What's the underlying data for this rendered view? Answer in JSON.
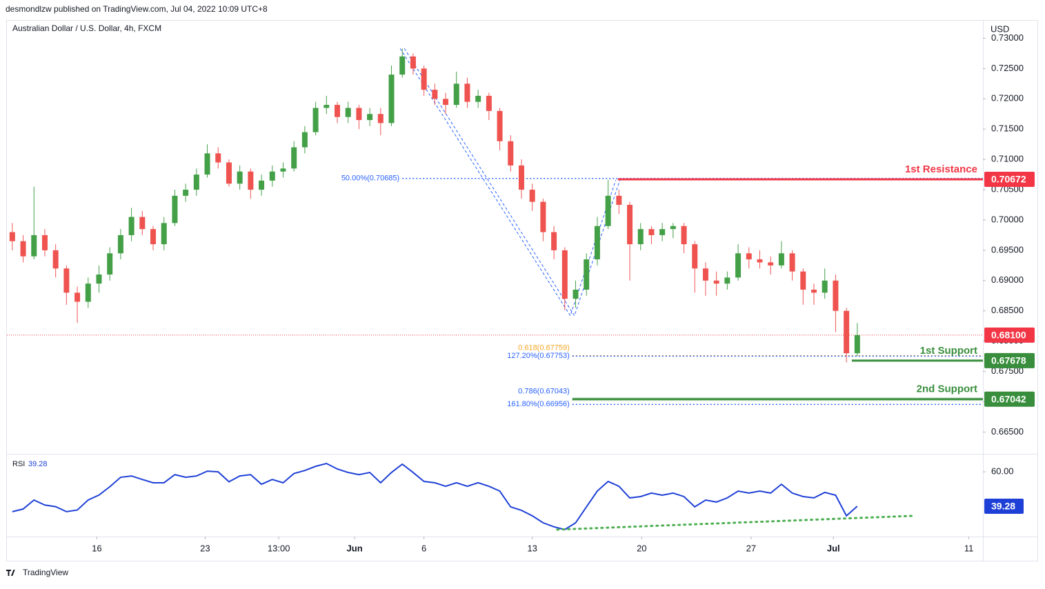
{
  "header": {
    "published": "desmondlzw published on TradingView.com, Jul 04, 2022 10:09 UTC+8",
    "brand": "TradingView"
  },
  "chart_data": [
    {
      "type": "candlestick",
      "title": "Australian Dollar / U.S. Dollar, 4h, FXCM",
      "y_label": "USD",
      "up_color": "#43a047",
      "down_color": "#ef5350",
      "xlim": [
        -0.5,
        89.6
      ],
      "xticks": [
        {
          "value": 7.8,
          "label": "16"
        },
        {
          "value": 17.8,
          "label": "23"
        },
        {
          "value": 24.6,
          "label": "13:00"
        },
        {
          "value": 31.6,
          "label": "Jun",
          "bold": true
        },
        {
          "value": 38,
          "label": "6"
        },
        {
          "value": 48,
          "label": "13"
        },
        {
          "value": 58.1,
          "label": "20"
        },
        {
          "value": 68.2,
          "label": "27"
        },
        {
          "value": 75.8,
          "label": "Jul",
          "bold": true
        },
        {
          "value": 88.3,
          "label": "11"
        }
      ],
      "ylim": [
        0.6614,
        0.7329
      ],
      "yticks": [
        {
          "value": 0.665,
          "label": "0.66500"
        },
        {
          "value": 0.67,
          "label": "0.67000"
        },
        {
          "value": 0.675,
          "label": "0.67500"
        },
        {
          "value": 0.68,
          "label": "0.68000"
        },
        {
          "value": 0.685,
          "label": "0.68500"
        },
        {
          "value": 0.69,
          "label": "0.69000"
        },
        {
          "value": 0.695,
          "label": "0.69500"
        },
        {
          "value": 0.7,
          "label": "0.70000"
        },
        {
          "value": 0.705,
          "label": "0.70500"
        },
        {
          "value": 0.71,
          "label": "0.71000"
        },
        {
          "value": 0.715,
          "label": "0.71500"
        },
        {
          "value": 0.72,
          "label": "0.72000"
        },
        {
          "value": 0.725,
          "label": "0.72500"
        },
        {
          "value": 0.73,
          "label": "0.73000"
        }
      ],
      "ohlc": [
        [
          0.698,
          0.6995,
          0.695,
          0.6965
        ],
        [
          0.6965,
          0.6975,
          0.693,
          0.694
        ],
        [
          0.694,
          0.7055,
          0.6935,
          0.6975
        ],
        [
          0.6975,
          0.6985,
          0.694,
          0.695
        ],
        [
          0.695,
          0.696,
          0.6905,
          0.692
        ],
        [
          0.692,
          0.6925,
          0.686,
          0.688
        ],
        [
          0.688,
          0.689,
          0.683,
          0.6865
        ],
        [
          0.6865,
          0.6905,
          0.6855,
          0.6895
        ],
        [
          0.6895,
          0.6925,
          0.688,
          0.691
        ],
        [
          0.691,
          0.6955,
          0.69,
          0.6945
        ],
        [
          0.6945,
          0.6985,
          0.6935,
          0.6975
        ],
        [
          0.6975,
          0.702,
          0.6965,
          0.7005
        ],
        [
          0.7005,
          0.7015,
          0.6975,
          0.6985
        ],
        [
          0.6985,
          0.699,
          0.695,
          0.696
        ],
        [
          0.696,
          0.7005,
          0.695,
          0.6995
        ],
        [
          0.6995,
          0.705,
          0.699,
          0.704
        ],
        [
          0.704,
          0.706,
          0.703,
          0.705
        ],
        [
          0.705,
          0.7085,
          0.704,
          0.7075
        ],
        [
          0.7075,
          0.7125,
          0.707,
          0.711
        ],
        [
          0.711,
          0.712,
          0.7085,
          0.7095
        ],
        [
          0.7095,
          0.71,
          0.7055,
          0.706
        ],
        [
          0.706,
          0.709,
          0.705,
          0.708
        ],
        [
          0.708,
          0.7085,
          0.7035,
          0.705
        ],
        [
          0.705,
          0.7075,
          0.704,
          0.7065
        ],
        [
          0.7065,
          0.709,
          0.7055,
          0.708
        ],
        [
          0.708,
          0.7095,
          0.707,
          0.7085
        ],
        [
          0.7085,
          0.713,
          0.708,
          0.712
        ],
        [
          0.712,
          0.7155,
          0.711,
          0.7145
        ],
        [
          0.7145,
          0.7195,
          0.714,
          0.7185
        ],
        [
          0.7185,
          0.7205,
          0.7175,
          0.719
        ],
        [
          0.719,
          0.7195,
          0.716,
          0.717
        ],
        [
          0.717,
          0.7195,
          0.716,
          0.7185
        ],
        [
          0.7185,
          0.719,
          0.715,
          0.7165
        ],
        [
          0.7165,
          0.7185,
          0.7155,
          0.7175
        ],
        [
          0.7175,
          0.7185,
          0.714,
          0.716
        ],
        [
          0.716,
          0.7255,
          0.7155,
          0.724
        ],
        [
          0.724,
          0.7283,
          0.7235,
          0.727
        ],
        [
          0.727,
          0.7275,
          0.724,
          0.725
        ],
        [
          0.725,
          0.7255,
          0.7205,
          0.7215
        ],
        [
          0.7215,
          0.7225,
          0.719,
          0.72
        ],
        [
          0.72,
          0.721,
          0.7175,
          0.719
        ],
        [
          0.719,
          0.7245,
          0.7185,
          0.7225
        ],
        [
          0.7225,
          0.7235,
          0.7185,
          0.7195
        ],
        [
          0.7195,
          0.7215,
          0.7185,
          0.7205
        ],
        [
          0.7205,
          0.721,
          0.7165,
          0.718
        ],
        [
          0.718,
          0.7185,
          0.7115,
          0.713
        ],
        [
          0.713,
          0.714,
          0.708,
          0.709
        ],
        [
          0.709,
          0.71,
          0.7035,
          0.705
        ],
        [
          0.705,
          0.706,
          0.7015,
          0.703
        ],
        [
          0.703,
          0.7035,
          0.6965,
          0.698
        ],
        [
          0.698,
          0.699,
          0.6935,
          0.695
        ],
        [
          0.695,
          0.6955,
          0.6851,
          0.687
        ],
        [
          0.687,
          0.69,
          0.6855,
          0.6885
        ],
        [
          0.6885,
          0.6945,
          0.6875,
          0.6935
        ],
        [
          0.6935,
          0.7005,
          0.6925,
          0.699
        ],
        [
          0.699,
          0.7066,
          0.6985,
          0.704
        ],
        [
          0.704,
          0.705,
          0.701,
          0.7025
        ],
        [
          0.7025,
          0.703,
          0.69,
          0.696
        ],
        [
          0.696,
          0.6995,
          0.695,
          0.6985
        ],
        [
          0.6985,
          0.699,
          0.696,
          0.6975
        ],
        [
          0.6975,
          0.6995,
          0.6965,
          0.6985
        ],
        [
          0.6985,
          0.6995,
          0.697,
          0.699
        ],
        [
          0.699,
          0.6995,
          0.6945,
          0.696
        ],
        [
          0.696,
          0.6965,
          0.688,
          0.692
        ],
        [
          0.692,
          0.693,
          0.6875,
          0.69
        ],
        [
          0.69,
          0.6915,
          0.6875,
          0.6895
        ],
        [
          0.6895,
          0.6915,
          0.6885,
          0.6905
        ],
        [
          0.6905,
          0.696,
          0.69,
          0.6945
        ],
        [
          0.6945,
          0.6955,
          0.692,
          0.6935
        ],
        [
          0.6935,
          0.695,
          0.692,
          0.693
        ],
        [
          0.693,
          0.694,
          0.691,
          0.6925
        ],
        [
          0.6925,
          0.6965,
          0.692,
          0.6945
        ],
        [
          0.6945,
          0.695,
          0.69,
          0.6915
        ],
        [
          0.6915,
          0.692,
          0.686,
          0.6885
        ],
        [
          0.6885,
          0.6895,
          0.686,
          0.688
        ],
        [
          0.688,
          0.692,
          0.687,
          0.69
        ],
        [
          0.69,
          0.691,
          0.6815,
          0.685
        ],
        [
          0.685,
          0.6855,
          0.6765,
          0.678
        ],
        [
          0.678,
          0.683,
          0.6775,
          0.681
        ]
      ],
      "current_price": {
        "value": 0.681,
        "label": "0.68100",
        "color": "#f23645"
      },
      "levels": [
        {
          "name": "1st Resistance",
          "value": 0.70672,
          "label": "0.70672",
          "color": "#f23645",
          "start": 55.9
        },
        {
          "name": "1st Support",
          "value": 0.67678,
          "label": "0.67678",
          "color": "#388e3c",
          "start": 77.5
        },
        {
          "name": "2nd Support",
          "value": 0.67042,
          "label": "0.67042",
          "color": "#388e3c",
          "start": 51.7
        }
      ],
      "fib_levels": [
        {
          "label": "50.00%(0.70685)",
          "value": 0.70685,
          "color": "#2962ff",
          "start": 36
        },
        {
          "label": "0.618(0.67759)",
          "value": 0.67759,
          "color": "#f5a623",
          "start": 51.7
        },
        {
          "label": "127.20%(0.67753)",
          "value": 0.67753,
          "color": "#2962ff",
          "start": 51.7
        },
        {
          "label": "0.786(0.67043)",
          "value": 0.67043,
          "color": "#2962ff",
          "start": 51.7
        },
        {
          "label": "161.80%(0.66956)",
          "value": 0.66956,
          "color": "#2962ff",
          "start": 51.7
        }
      ],
      "fib_path": {
        "x": [
          36,
          51.7,
          55.9
        ],
        "y": [
          0.7283,
          0.6842,
          0.7066
        ],
        "color": "#2962ff"
      }
    },
    {
      "type": "line",
      "title": "RSI",
      "color": "#1e40d6",
      "ylim": [
        21,
        70
      ],
      "yticks": [
        {
          "value": 60,
          "label": "60.00"
        }
      ],
      "values": [
        36,
        37.6,
        43,
        40,
        39,
        36,
        37,
        43,
        46,
        51,
        56.7,
        57.5,
        55.4,
        53.4,
        53.4,
        58.3,
        56.7,
        57.5,
        60.4,
        60,
        54,
        57.5,
        58.3,
        52.5,
        55.4,
        53.4,
        59,
        60.8,
        63.3,
        65,
        61.7,
        59.6,
        58.3,
        59.6,
        53.4,
        59.6,
        64.6,
        59.6,
        54.2,
        53.4,
        51.3,
        53.4,
        51.3,
        53.4,
        51.3,
        48.4,
        38.9,
        36.8,
        33.5,
        29.3,
        26.9,
        25.2,
        29.3,
        38.9,
        48.4,
        54.2,
        51.3,
        44.3,
        45.1,
        47.2,
        45.9,
        47.2,
        45.1,
        38.9,
        43,
        41.8,
        44.3,
        48.4,
        47.2,
        48.4,
        47.2,
        52.5,
        47.2,
        45.1,
        44.3,
        47.6,
        45.9,
        33.5,
        39.28
      ],
      "trendline": {
        "x": [
          50.3,
          83.2
        ],
        "y": [
          25.2,
          33.5
        ],
        "color": "#4caf50"
      }
    }
  ]
}
